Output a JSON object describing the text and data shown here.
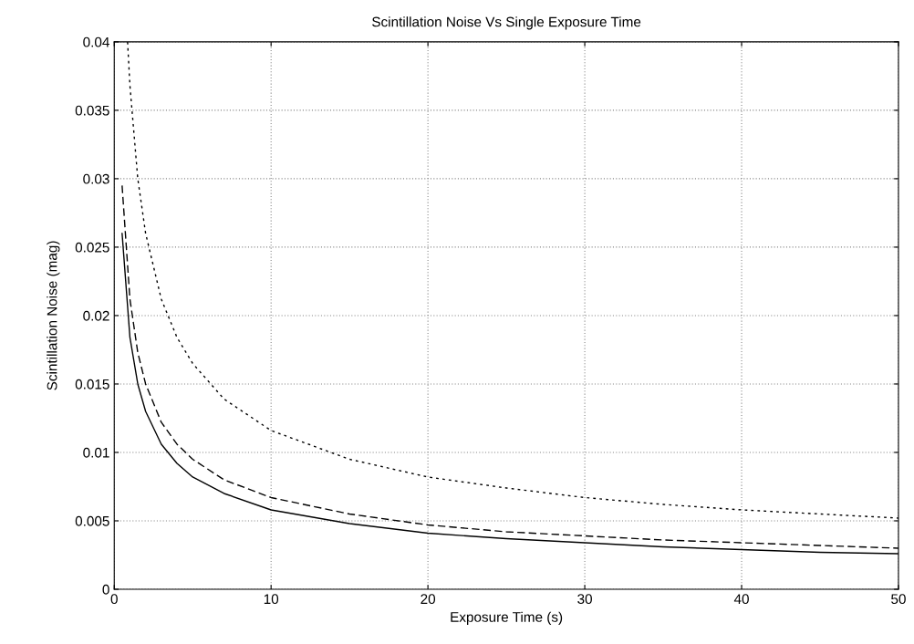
{
  "chart_data": {
    "type": "line",
    "title": "Scintillation Noise Vs Single Exposure Time",
    "xlabel": "Exposure Time (s)",
    "ylabel": "Scintillation Noise (mag)",
    "xlim": [
      0,
      50
    ],
    "xticks": [
      0,
      10,
      20,
      30,
      40,
      50
    ],
    "ylim": [
      0,
      0.04
    ],
    "yticks": [
      0,
      0.005,
      0.01,
      0.015,
      0.02,
      0.025,
      0.03,
      0.035,
      0.04
    ],
    "grid": true,
    "legend": false,
    "series": [
      {
        "color": "#000000",
        "line_style": "solid",
        "x": [
          0.5,
          1,
          1.5,
          2,
          3,
          4,
          5,
          7,
          10,
          15,
          20,
          25,
          30,
          35,
          40,
          45,
          50
        ],
        "values": [
          0.026,
          0.0184,
          0.015,
          0.013,
          0.0106,
          0.0092,
          0.0082,
          0.007,
          0.0058,
          0.0048,
          0.0041,
          0.0037,
          0.0034,
          0.0031,
          0.0029,
          0.0027,
          0.0026
        ]
      },
      {
        "color": "#000000",
        "line_style": "dashed",
        "x": [
          0.5,
          1,
          1.5,
          2,
          3,
          4,
          5,
          7,
          10,
          15,
          20,
          25,
          30,
          35,
          40,
          45,
          50
        ],
        "values": [
          0.0295,
          0.0212,
          0.0173,
          0.015,
          0.0122,
          0.0106,
          0.0095,
          0.008,
          0.0067,
          0.0055,
          0.0047,
          0.0042,
          0.0039,
          0.0036,
          0.0034,
          0.0032,
          0.003
        ]
      },
      {
        "color": "#000000",
        "line_style": "dotted",
        "x": [
          0.85,
          1,
          1.5,
          2,
          3,
          4,
          5,
          7,
          10,
          15,
          20,
          25,
          30,
          35,
          40,
          45,
          50
        ],
        "values": [
          0.04,
          0.0368,
          0.03,
          0.026,
          0.0212,
          0.0184,
          0.0165,
          0.0139,
          0.0116,
          0.0095,
          0.0082,
          0.0074,
          0.0067,
          0.0062,
          0.0058,
          0.0055,
          0.0052
        ]
      }
    ]
  }
}
